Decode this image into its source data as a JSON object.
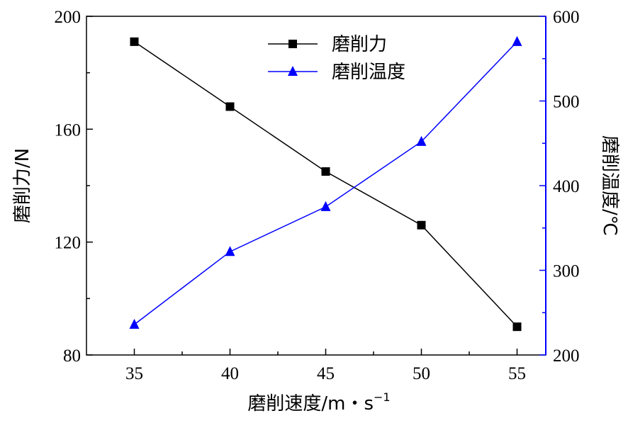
{
  "chart_data": {
    "type": "line",
    "title": "",
    "x": [
      35,
      40,
      45,
      50,
      55
    ],
    "xlabel": "磨削速度/m・s",
    "xlabel_sup": "−1",
    "xlim": [
      32.5,
      56.5
    ],
    "xticks": [
      35,
      40,
      45,
      50,
      55
    ],
    "ylabel_left": "磨削力/N",
    "ylim_left": [
      80,
      200
    ],
    "yticks_left": [
      80,
      120,
      160,
      200
    ],
    "ylabel_right": "磨削温度/℃",
    "ylim_right": [
      200,
      600
    ],
    "yticks_right": [
      200,
      300,
      400,
      500,
      600
    ],
    "grid": false,
    "legend_position": "top-center",
    "series": [
      {
        "name": "磨削力",
        "axis": "left",
        "color": "#000000",
        "marker": "square",
        "values": [
          191,
          168,
          145,
          126,
          90
        ]
      },
      {
        "name": "磨削温度",
        "axis": "right",
        "color": "#0000ff",
        "marker": "triangle",
        "values": [
          236,
          322,
          375,
          452,
          570
        ]
      }
    ]
  }
}
